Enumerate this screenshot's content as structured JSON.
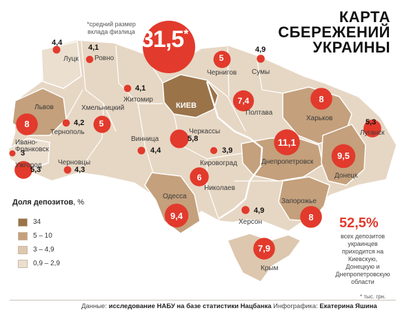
{
  "title": [
    "КАРТА",
    "СБЕРЕЖЕНИЙ",
    "УКРАИНЫ"
  ],
  "avg_note": [
    "*средний размер",
    "вклада физлица"
  ],
  "avg_value": "31,5",
  "avg_star": "*",
  "colors": {
    "bubble": "#e23a2c",
    "share_34": "#9a7349",
    "share_5_10": "#c4a07c",
    "share_3_4_9": "#ddc7ae",
    "share_0_9_2_9": "#ebdfd0",
    "border": "#ffffff"
  },
  "legend": {
    "title": "Доля депозитов",
    "unit": ", %",
    "items": [
      {
        "label": "34",
        "color": "#9a7349"
      },
      {
        "label": "5 – 10",
        "color": "#c4a07c"
      },
      {
        "label": "3 – 4,9",
        "color": "#ddc7ae"
      },
      {
        "label": "0,9 – 2,9",
        "color": "#ebdfd0"
      }
    ]
  },
  "regions": [
    {
      "name": "Луцк",
      "value": "4,4"
    },
    {
      "name": "Ровно",
      "value": "4,1"
    },
    {
      "name": "Житомир",
      "value": "4,1"
    },
    {
      "name": "Чернигов",
      "value": "5"
    },
    {
      "name": "Сумы",
      "value": "4,9"
    },
    {
      "name": "КИЕВ",
      "value": "31,5"
    },
    {
      "name": "Львов",
      "value": "8"
    },
    {
      "name": "Хмельницкий",
      "value": "5"
    },
    {
      "name": "Полтава",
      "value": "7,4"
    },
    {
      "name": "Харьков",
      "value": "8"
    },
    {
      "name": "Тернополь",
      "value": "4,2"
    },
    {
      "name": "Ивано-Франковск",
      "value": "5,3"
    },
    {
      "name": "Черкассы",
      "value": "5,8"
    },
    {
      "name": "Луганск",
      "value": "5,3"
    },
    {
      "name": "Ужгород",
      "value": "3"
    },
    {
      "name": "Винница",
      "value": "4,4"
    },
    {
      "name": "Кировоград",
      "value": "3,9"
    },
    {
      "name": "Днепропетровск",
      "value": "11,1"
    },
    {
      "name": "Донецк",
      "value": "9,5"
    },
    {
      "name": "Черновцы",
      "value": "4,3"
    },
    {
      "name": "Николаев",
      "value": "6"
    },
    {
      "name": "Одесса",
      "value": "9,4"
    },
    {
      "name": "Запорожье",
      "value": "8"
    },
    {
      "name": "Херсон",
      "value": "4,9"
    },
    {
      "name": "Крым",
      "value": "7,9"
    }
  ],
  "labels": {
    "lutsk": "Луцк",
    "rovno": "Ровно",
    "zhytomyr": "Житомир",
    "chernihiv": "Чернигов",
    "sumy": "Сумы",
    "kyiv": "КИЕВ",
    "lviv": "Львов",
    "khmelnytskyi": "Хмельницкий",
    "poltava": "Полтава",
    "kharkiv": "Харьков",
    "ternopil": "Тернополь",
    "ivano1": "Ивано-",
    "ivano2": "Франковск",
    "cherkasy": "Черкассы",
    "luhansk": "Луганск",
    "uzhhorod": "Ужгород",
    "vinnytsia": "Винница",
    "kirovohrad": "Кировоград",
    "dnipro": "Днепропетровск",
    "donetsk": "Донецк",
    "chernivtsi": "Черновцы",
    "mykolaiv": "Николаев",
    "odesa": "Одесса",
    "zaporizhzhia": "Запорожье",
    "kherson": "Херсон",
    "crimea": "Крым"
  },
  "values": {
    "lutsk": "4,4",
    "rovno": "4,1",
    "zhytomyr": "4,1",
    "chernihiv": "5",
    "sumy": "4,9",
    "lviv": "8",
    "khmelnytskyi": "5",
    "poltava": "7,4",
    "kharkiv": "8",
    "ternopil": "4,2",
    "ivano": "5,3",
    "cherkasy": "5,8",
    "luhansk": "5,3",
    "uzhhorod": "3",
    "vinnytsia": "4,4",
    "kirovohrad": "3,9",
    "dnipro": "11,1",
    "donetsk": "9,5",
    "chernivtsi": "4,3",
    "mykolaiv": "6",
    "odesa": "9,4",
    "zaporizhzhia": "8",
    "kherson": "4,9",
    "crimea": "7,9"
  },
  "share_stat": "52,5%",
  "share_note": [
    "всех депозитов",
    "украинцев",
    "приходится на",
    "Киевскую,",
    "Донецкую и",
    "Днепропетровскую",
    "области"
  ],
  "unit_note": "* тыс. грн.",
  "source": {
    "label1": "Данные: ",
    "text1": "исследование НАБУ на базе статистики Нацбанка",
    "label2": " Инфографика: ",
    "text2": "Екатерина Яшина"
  }
}
